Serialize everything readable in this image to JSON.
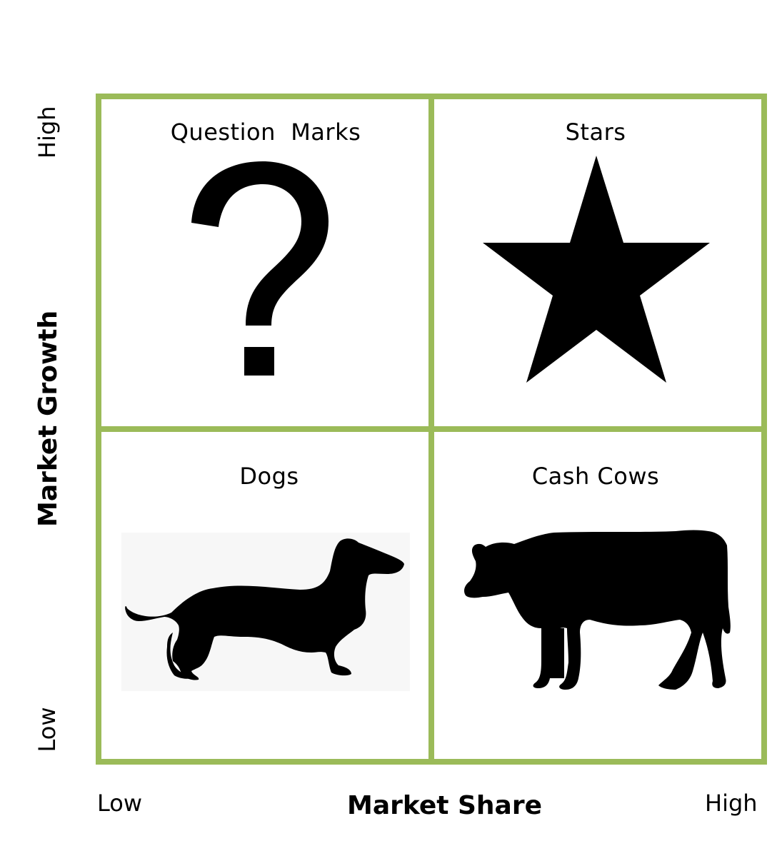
{
  "quadrants": {
    "top_left": {
      "label": "Question  Marks",
      "icon": "question-mark-icon"
    },
    "top_right": {
      "label": "Stars",
      "icon": "star-icon"
    },
    "bottom_left": {
      "label": "Dogs",
      "icon": "dog-icon"
    },
    "bottom_right": {
      "label": "Cash Cows",
      "icon": "cow-icon"
    }
  },
  "y_axis": {
    "title": "Market Growth",
    "high_label": "High",
    "low_label": "Low"
  },
  "x_axis": {
    "title": "Market Share",
    "low_label": "Low",
    "high_label": "High"
  },
  "colors": {
    "grid": "#9bbb59",
    "icons": "#000000"
  }
}
